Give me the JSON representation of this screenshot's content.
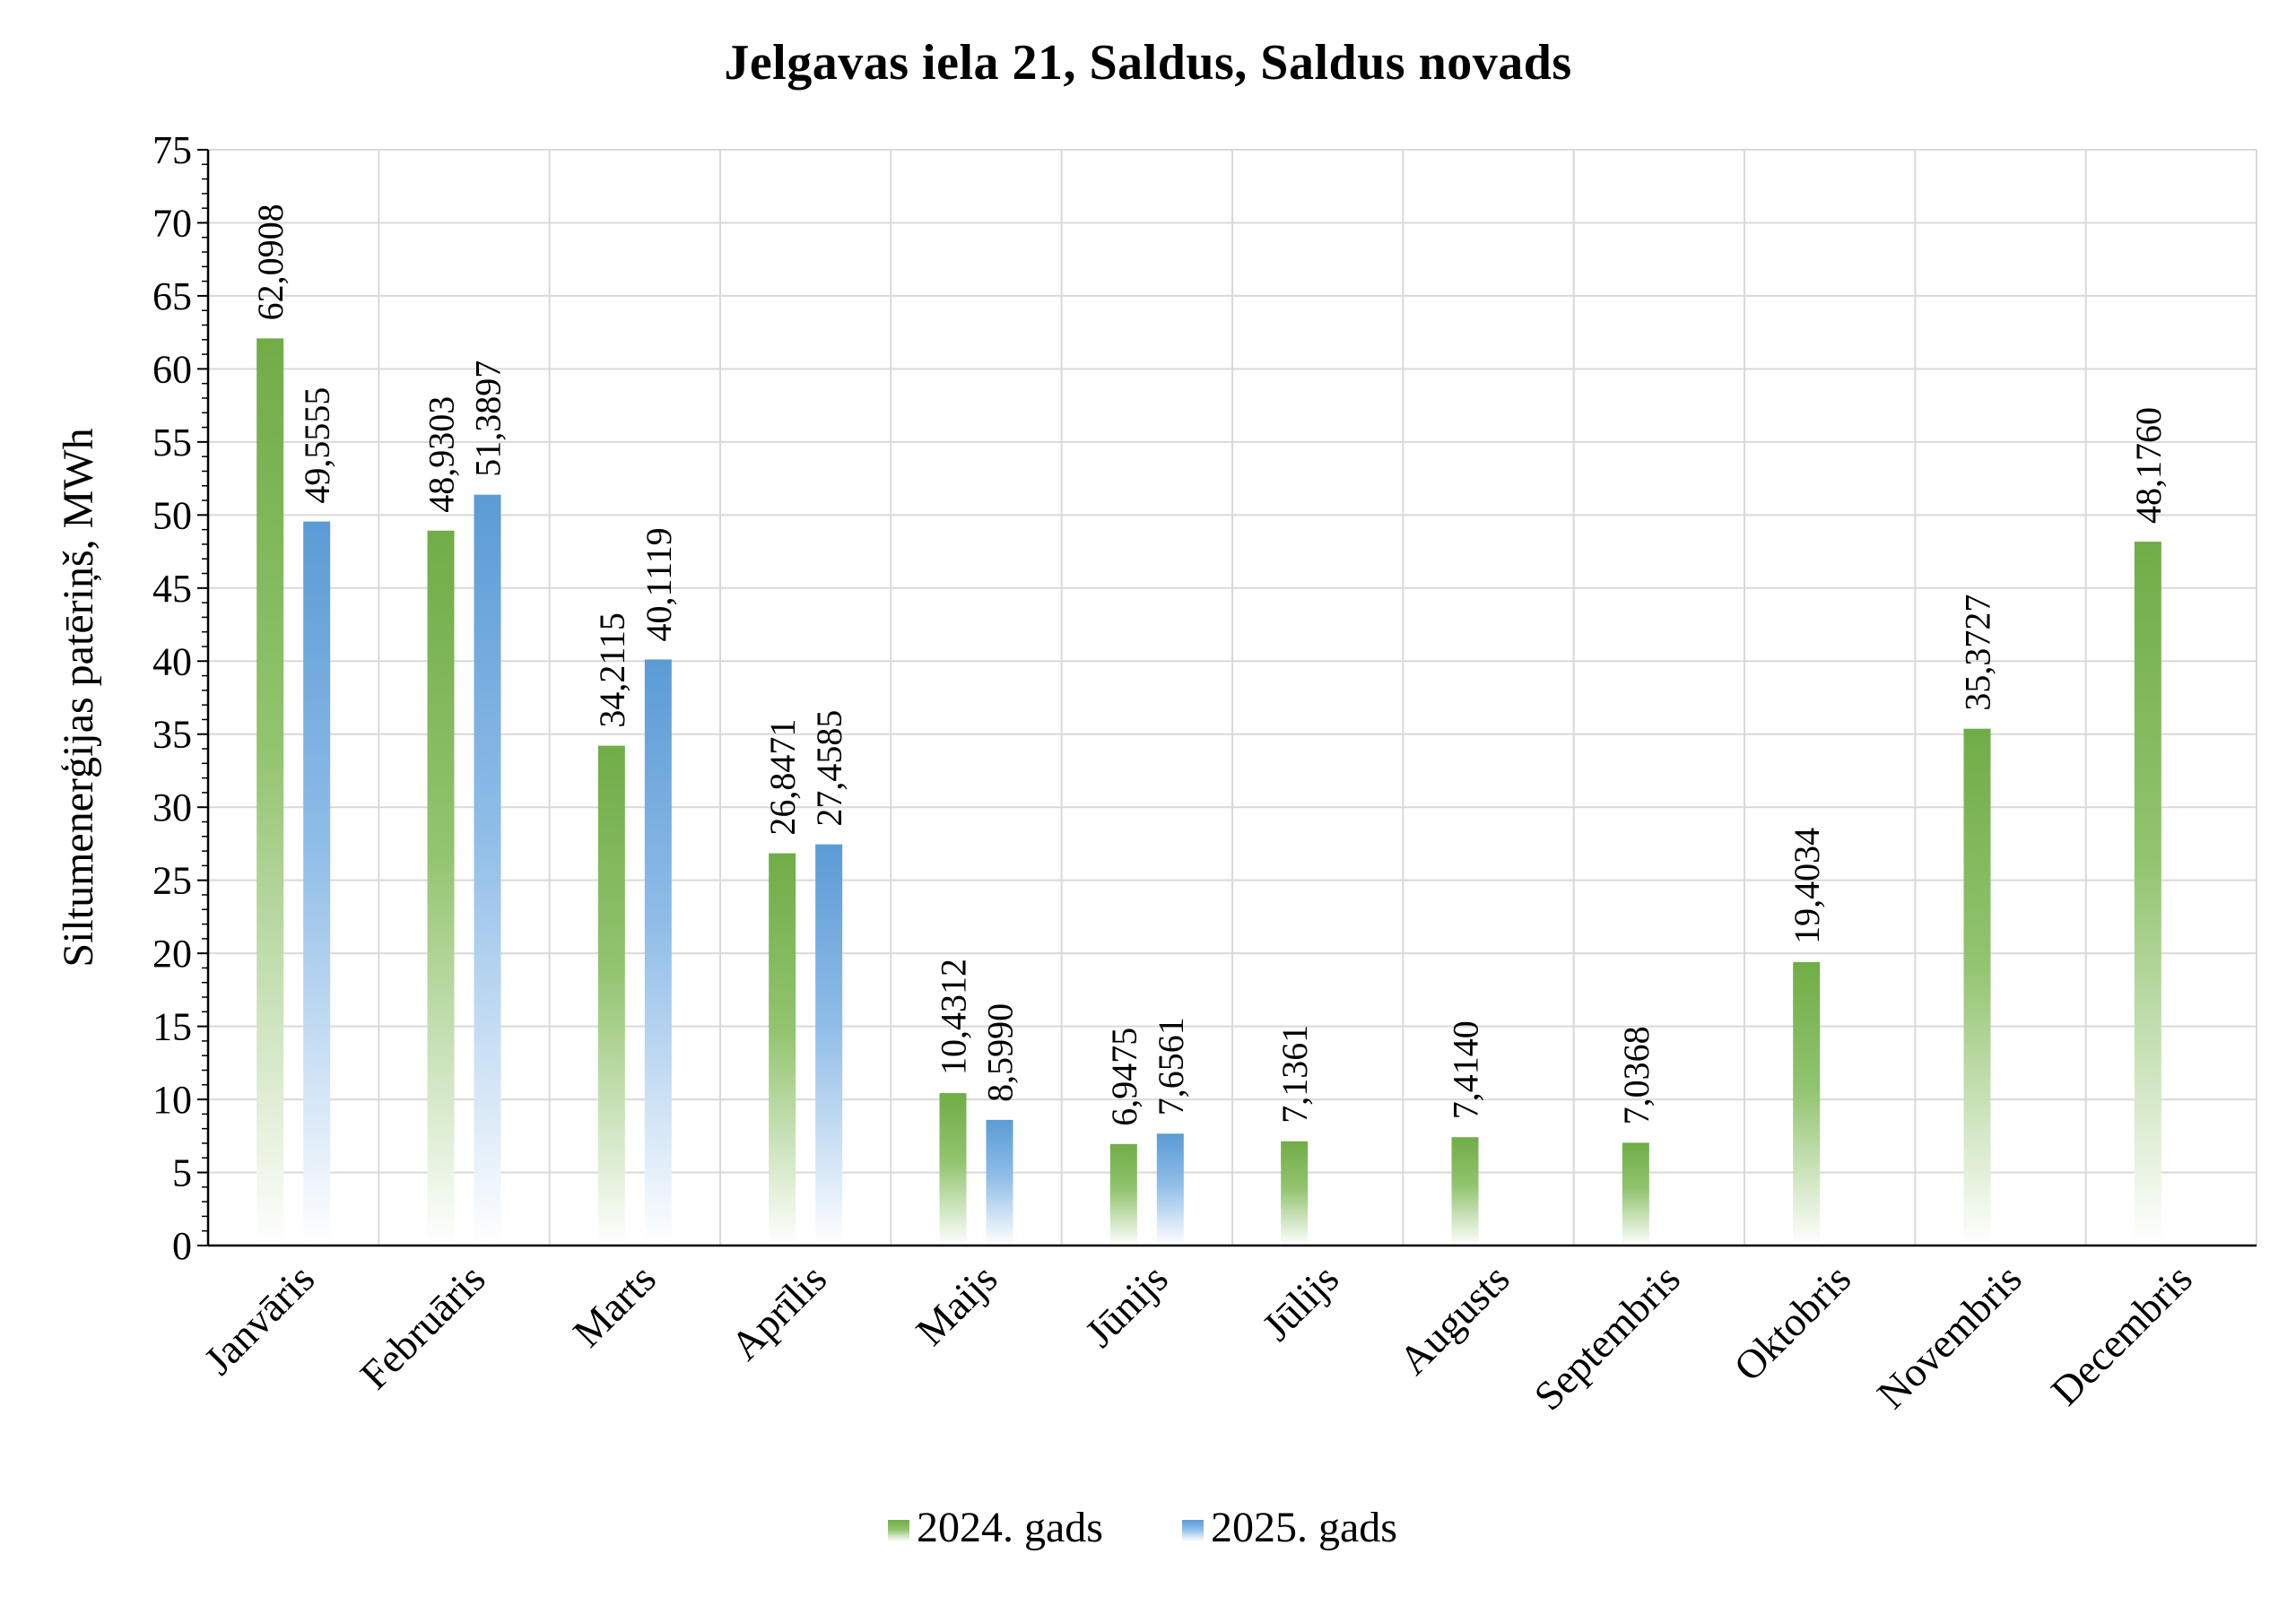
{
  "chart_data": {
    "type": "bar",
    "title": "Jelgavas iela 21, Saldus, Saldus novads",
    "ylabel": "Siltumenerģijas patēriņš, MWh",
    "xlabel": "",
    "ylim": [
      0,
      75
    ],
    "ytick_step": 5,
    "grid": true,
    "legend_position": "bottom",
    "categories": [
      "Janvāris",
      "Februāris",
      "Marts",
      "Aprīlis",
      "Maijs",
      "Jūnijs",
      "Jūlijs",
      "Augusts",
      "Septembris",
      "Oktobris",
      "Novembris",
      "Decembris"
    ],
    "series": [
      {
        "name": "2024. gads",
        "color": "#70ad47",
        "values": [
          62.0908,
          48.9303,
          34.2115,
          26.8471,
          10.4312,
          6.9475,
          7.1361,
          7.414,
          7.0368,
          19.4034,
          35.3727,
          48.176
        ],
        "labels": [
          "62,0908",
          "48,9303",
          "34,2115",
          "26,8471",
          "10,4312",
          "6,9475",
          "7,1361",
          "7,4140",
          "7,0368",
          "19,4034",
          "35,3727",
          "48,1760"
        ]
      },
      {
        "name": "2025. gads",
        "color": "#5b9bd5",
        "values": [
          49.5555,
          51.3897,
          40.1119,
          27.4585,
          8.599,
          7.6561,
          null,
          null,
          null,
          null,
          null,
          null
        ],
        "labels": [
          "49,5555",
          "51,3897",
          "40,1119",
          "27,4585",
          "8,5990",
          "7,6561",
          null,
          null,
          null,
          null,
          null,
          null
        ]
      }
    ]
  }
}
